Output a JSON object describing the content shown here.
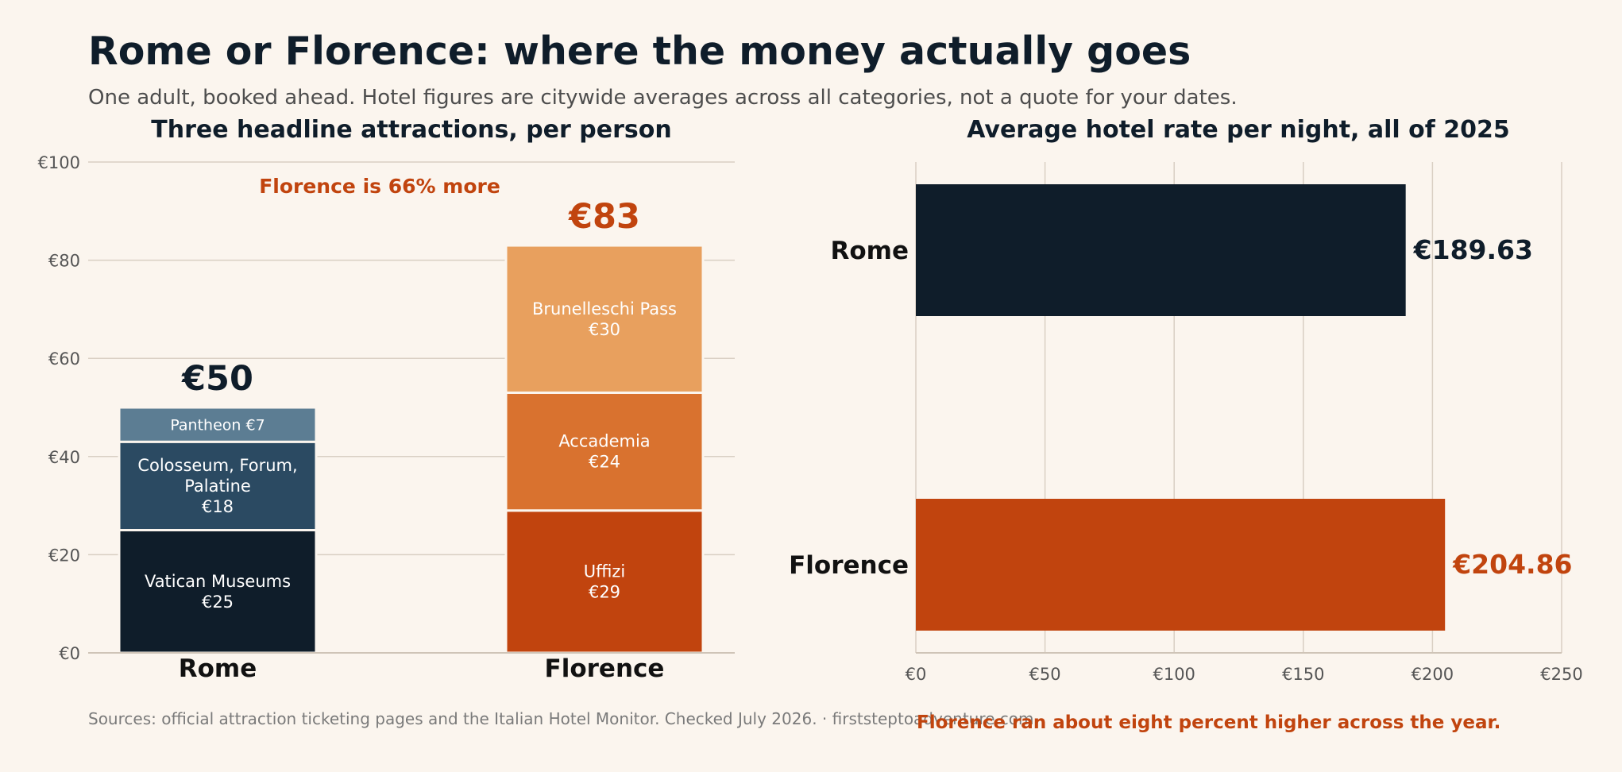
{
  "header": {
    "title": "Rome or Florence: where the money actually goes",
    "subtitle": "One adult, booked ahead. Hotel figures are citywide averages across all categories, not a quote for your dates."
  },
  "footer": {
    "sources": "Sources: official attraction ticketing pages and the Italian Hotel Monitor. Checked July 2026.  ·  firststeptoadventure.com",
    "hotel_note": "Florence ran about eight percent higher across the year."
  },
  "colors": {
    "background": "#fbf5ee",
    "ink": "#0f1d2a",
    "accent": "#c1440e",
    "grid": "#d9cfc3"
  },
  "chart_data": [
    {
      "type": "bar",
      "stacked": true,
      "title": "Three headline attractions, per person",
      "categories": [
        "Rome",
        "Florence"
      ],
      "ylim": [
        0,
        100
      ],
      "yticks": [
        "€0",
        "€20",
        "€40",
        "€60",
        "€80",
        "€100"
      ],
      "ytick_values": [
        0,
        20,
        40,
        60,
        80,
        100
      ],
      "grid": true,
      "totals": [
        {
          "category": "Rome",
          "value": 50,
          "label": "€50"
        },
        {
          "category": "Florence",
          "value": 83,
          "label": "€83"
        }
      ],
      "annotation": "Florence is 66% more",
      "segments": [
        {
          "category": "Rome",
          "name": "Vatican Museums",
          "value": 25,
          "label": "€25",
          "color": "#0f1d2a"
        },
        {
          "category": "Rome",
          "name": "Colosseum, Forum, Palatine",
          "lines": [
            "Colosseum, Forum,",
            "Palatine"
          ],
          "value": 18,
          "label": "€18",
          "color": "#2b4a62"
        },
        {
          "category": "Rome",
          "name": "Pantheon",
          "value": 7,
          "label": "€7",
          "color": "#5c7d93",
          "inline": true
        },
        {
          "category": "Florence",
          "name": "Uffizi",
          "value": 29,
          "label": "€29",
          "color": "#c1440e"
        },
        {
          "category": "Florence",
          "name": "Accademia",
          "value": 24,
          "label": "€24",
          "color": "#d9722f"
        },
        {
          "category": "Florence",
          "name": "Brunelleschi Pass",
          "value": 30,
          "label": "€30",
          "color": "#e8a05e"
        }
      ]
    },
    {
      "type": "bar",
      "orientation": "horizontal",
      "title": "Average hotel rate per night, all of 2025",
      "categories": [
        "Rome",
        "Florence"
      ],
      "values": [
        189.63,
        204.86
      ],
      "value_labels": [
        "€189.63",
        "€204.86"
      ],
      "colors": [
        "#0f1d2a",
        "#c1440e"
      ],
      "xlim": [
        0,
        250
      ],
      "xticks": [
        "€0",
        "€50",
        "€100",
        "€150",
        "€200",
        "€250"
      ],
      "xtick_values": [
        0,
        50,
        100,
        150,
        200,
        250
      ],
      "grid": true
    }
  ]
}
